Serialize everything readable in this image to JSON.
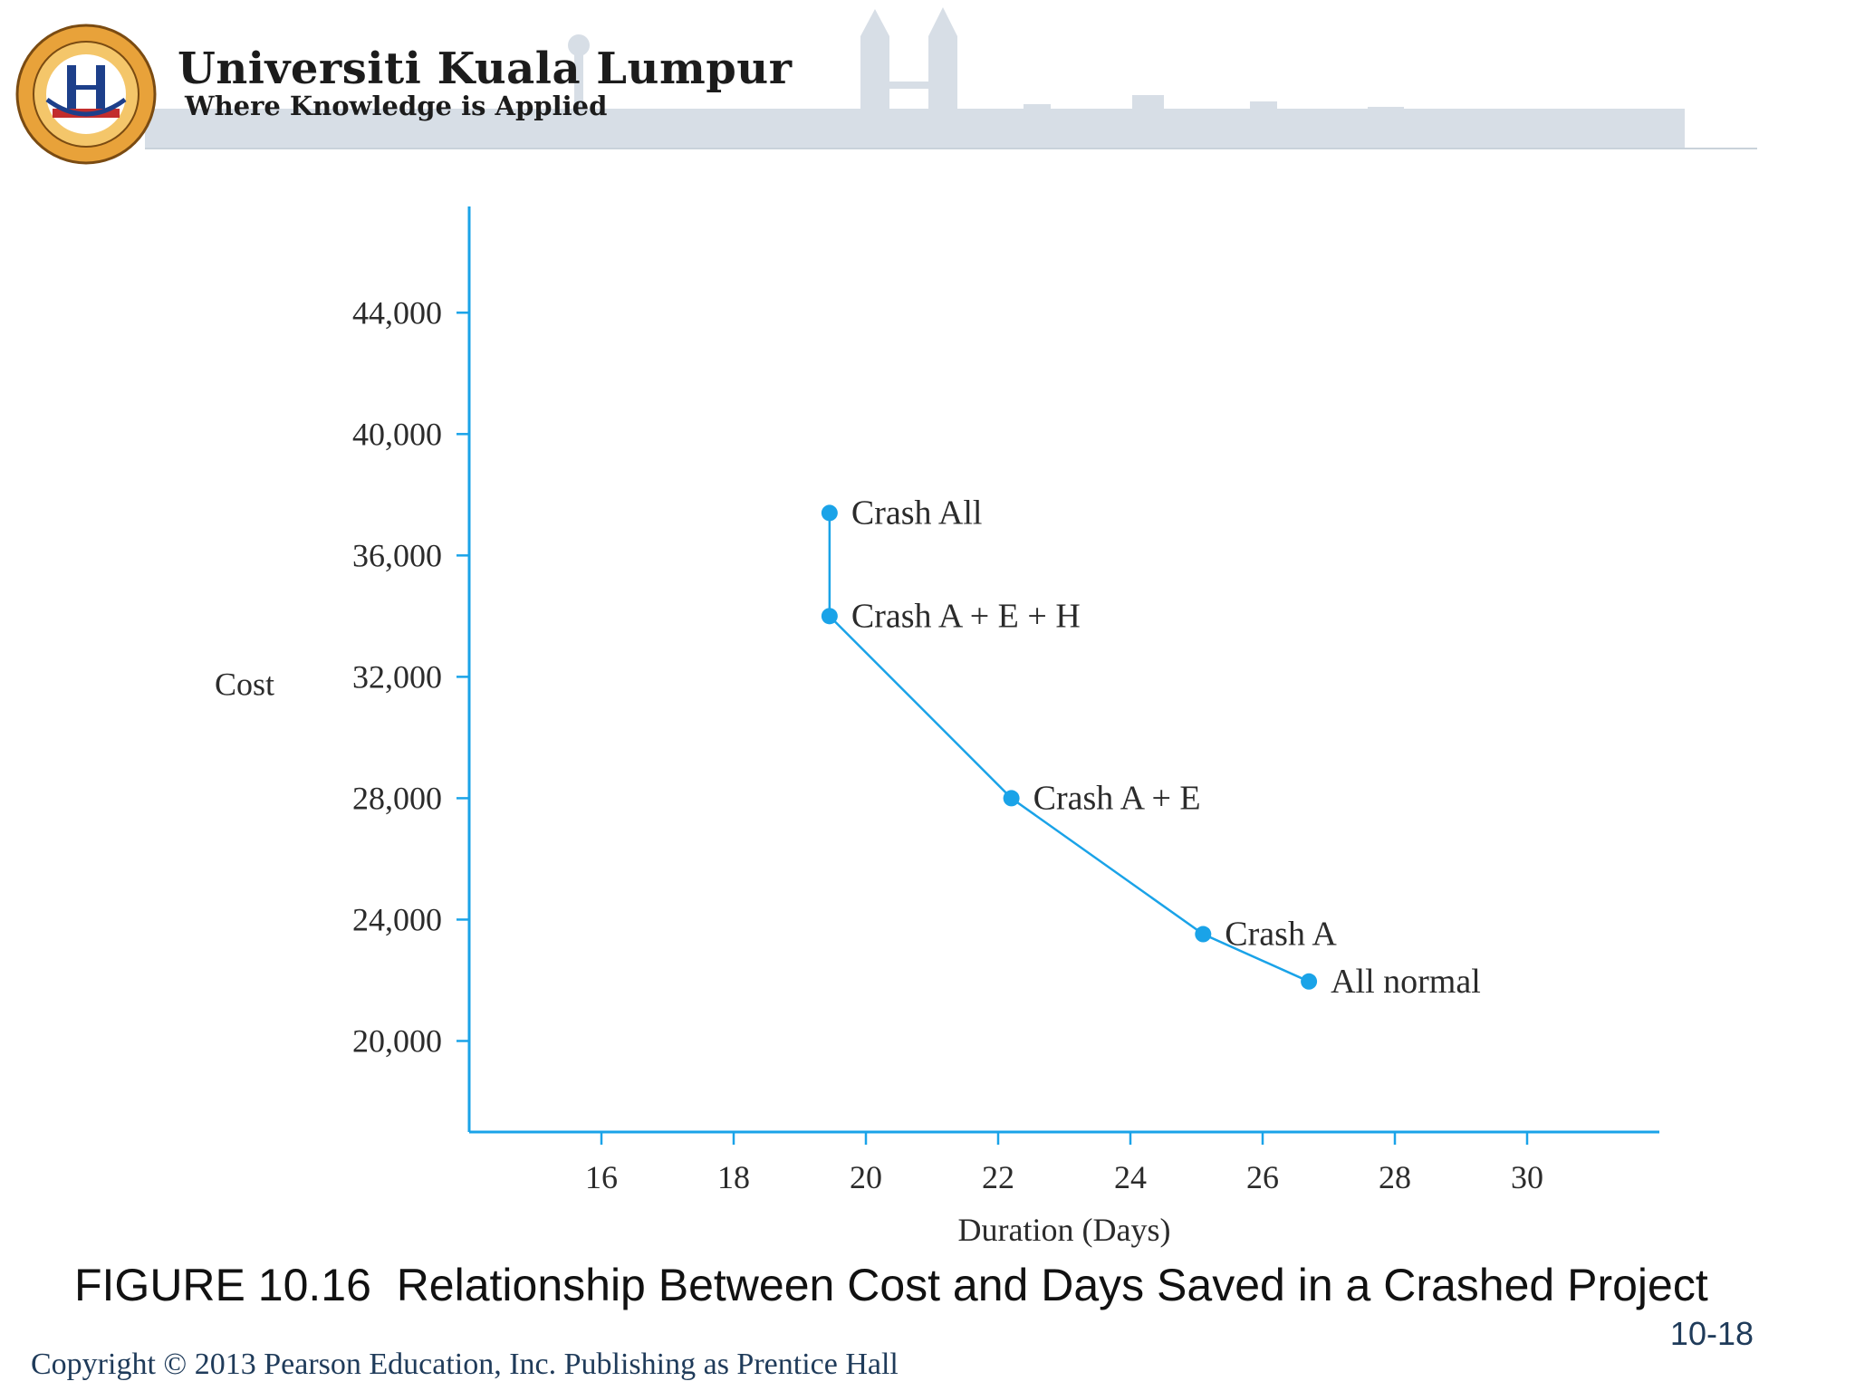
{
  "header": {
    "university_name": "Universiti Kuala Lumpur",
    "tagline": "Where Knowledge is Applied",
    "logo_icon": "unikl-crest-icon"
  },
  "chart_data": {
    "type": "line",
    "title": "",
    "xlabel": "Duration (Days)",
    "ylabel": "Cost",
    "xlim": [
      14,
      32
    ],
    "ylim": [
      17000,
      47500
    ],
    "x_ticks": [
      16,
      18,
      20,
      22,
      24,
      26,
      28,
      30
    ],
    "x_tick_labels": [
      "16",
      "18",
      "20",
      "22",
      "24",
      "26",
      "28",
      "30"
    ],
    "y_ticks": [
      20000,
      24000,
      28000,
      32000,
      36000,
      40000,
      44000
    ],
    "y_tick_labels": [
      "20,000",
      "24,000",
      "28,000",
      "32,000",
      "36,000",
      "40,000",
      "44,000"
    ],
    "grid": false,
    "color": "#1aa3e8",
    "points": [
      {
        "label": "All normal",
        "x": 26.7,
        "y": 21960
      },
      {
        "label": "Crash A",
        "x": 25.1,
        "y": 23520
      },
      {
        "label": "Crash A + E",
        "x": 22.2,
        "y": 28000
      },
      {
        "label": "Crash A + E + H",
        "x": 19.45,
        "y": 34000
      },
      {
        "label": "Crash All",
        "x": 19.45,
        "y": 37400
      }
    ]
  },
  "caption": "FIGURE 10.16  Relationship Between Cost and Days Saved in a Crashed Project",
  "page_number": "10-18",
  "copyright": "Copyright © 2013 Pearson Education, Inc. Publishing as Prentice Hall"
}
